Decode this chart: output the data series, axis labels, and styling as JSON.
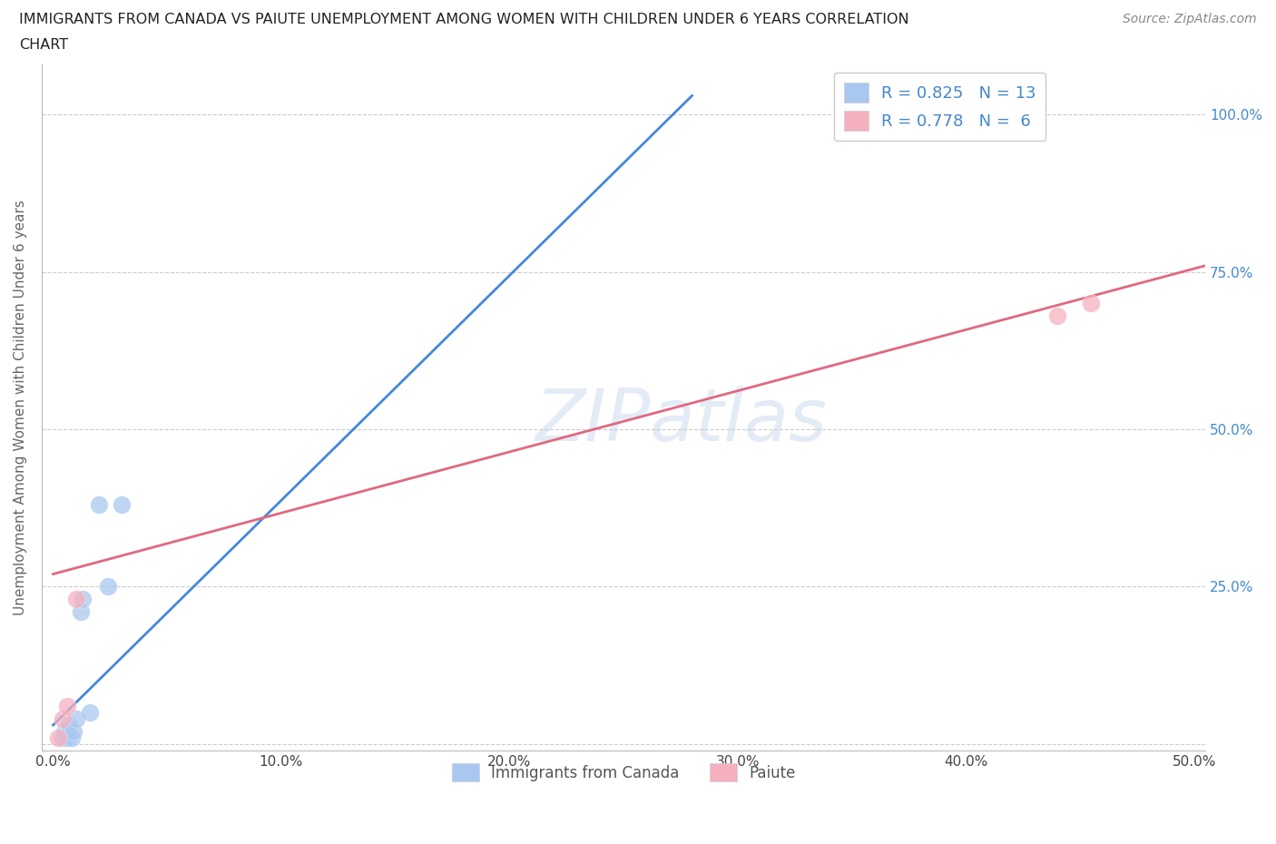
{
  "title_line1": "IMMIGRANTS FROM CANADA VS PAIUTE UNEMPLOYMENT AMONG WOMEN WITH CHILDREN UNDER 6 YEARS CORRELATION",
  "title_line2": "CHART",
  "source": "Source: ZipAtlas.com",
  "ylabel": "Unemployment Among Women with Children Under 6 years",
  "xlim": [
    -0.005,
    0.505
  ],
  "ylim": [
    -0.01,
    1.08
  ],
  "xticks": [
    0.0,
    0.1,
    0.2,
    0.3,
    0.4,
    0.5
  ],
  "xtick_labels": [
    "0.0%",
    "10.0%",
    "20.0%",
    "30.0%",
    "40.0%",
    "50.0%"
  ],
  "yticks": [
    0.0,
    0.25,
    0.5,
    0.75,
    1.0
  ],
  "ytick_labels": [
    "",
    "25.0%",
    "50.0%",
    "75.0%",
    "100.0%"
  ],
  "blue_scatter_x": [
    0.004,
    0.005,
    0.006,
    0.007,
    0.008,
    0.009,
    0.01,
    0.012,
    0.013,
    0.016,
    0.02,
    0.024,
    0.03
  ],
  "blue_scatter_y": [
    0.01,
    0.02,
    0.01,
    0.03,
    0.01,
    0.02,
    0.04,
    0.21,
    0.23,
    0.05,
    0.38,
    0.25,
    0.38
  ],
  "pink_scatter_x": [
    0.002,
    0.004,
    0.006,
    0.01,
    0.44,
    0.455
  ],
  "pink_scatter_y": [
    0.01,
    0.04,
    0.06,
    0.23,
    0.68,
    0.7
  ],
  "blue_line_x": [
    0.0,
    0.28
  ],
  "blue_line_y": [
    0.03,
    1.03
  ],
  "pink_line_x": [
    0.0,
    0.505
  ],
  "pink_line_y": [
    0.27,
    0.76
  ],
  "blue_R": "0.825",
  "blue_N": "13",
  "pink_R": "0.778",
  "pink_N": "6",
  "blue_color": "#A8C8F0",
  "blue_line_color": "#4488DD",
  "pink_color": "#F5B0C0",
  "pink_line_color": "#E06880",
  "watermark": "ZIPatlas",
  "background_color": "#ffffff",
  "grid_color": "#cccccc",
  "title_color": "#222222",
  "legend_text_color": "#4488CC",
  "ylabel_color": "#666666",
  "ytick_color": "#4488CC",
  "xtick_color": "#444444",
  "source_color": "#888888"
}
